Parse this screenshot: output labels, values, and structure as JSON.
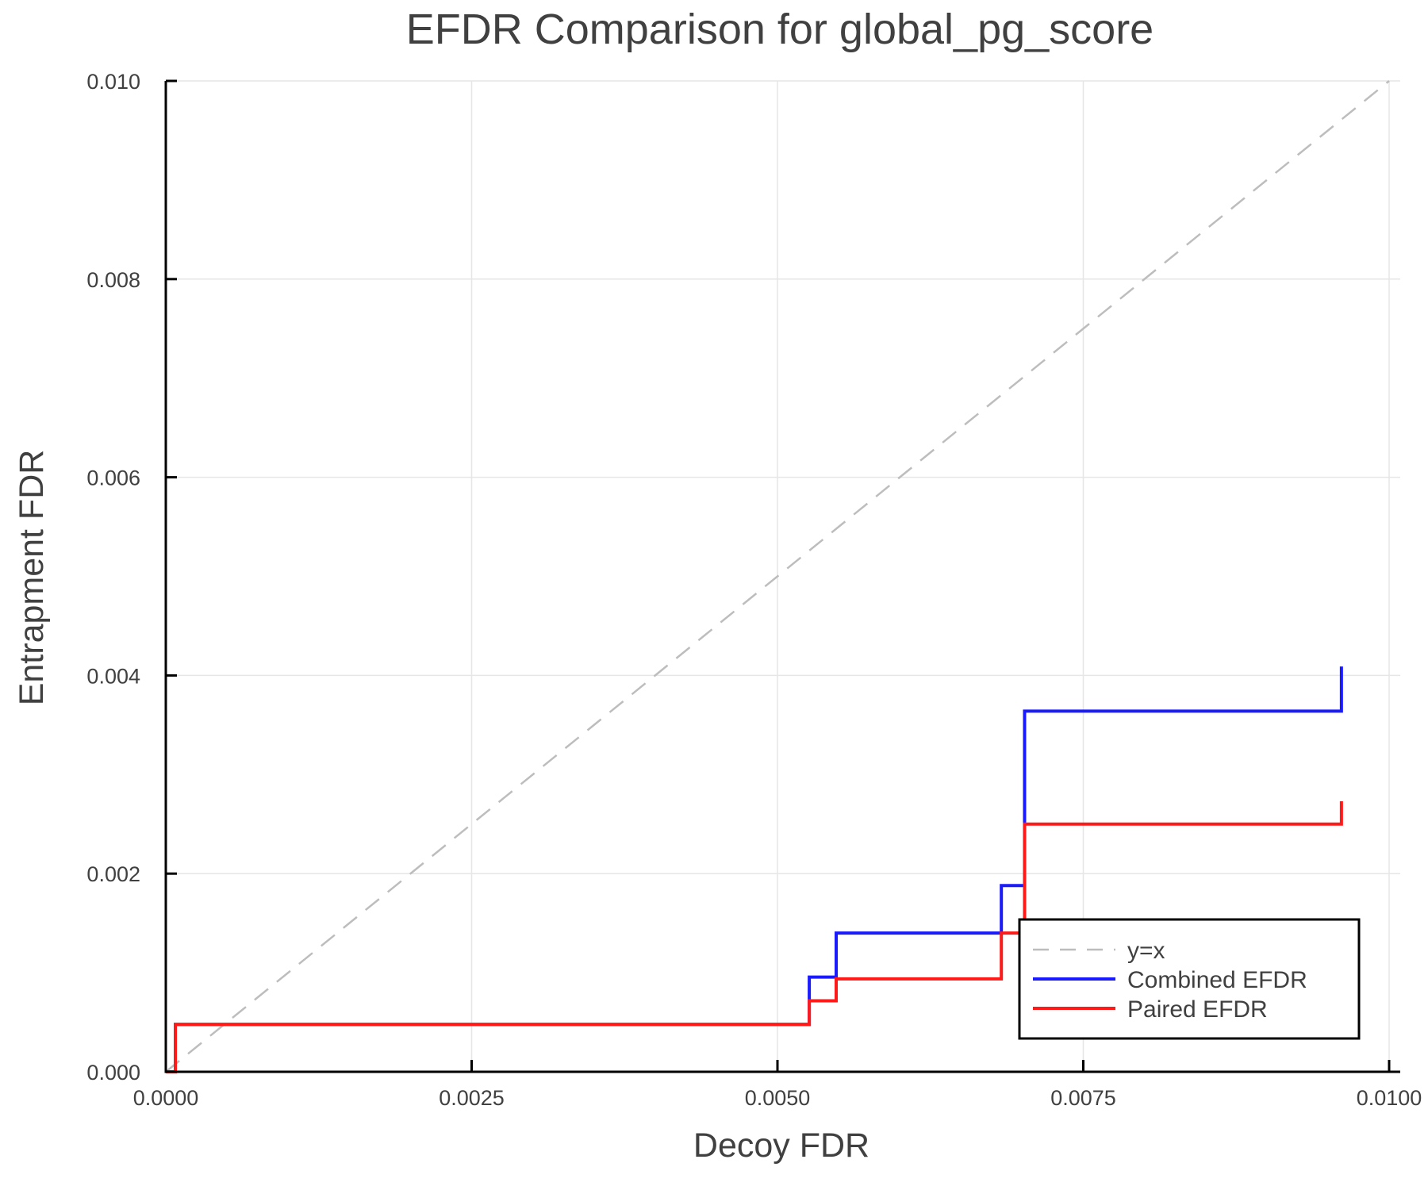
{
  "chart_data": {
    "type": "line",
    "title": "EFDR Comparison for global_pg_score",
    "xlabel": "Decoy FDR",
    "ylabel": "Entrapment FDR",
    "xlim": [
      0,
      0.01
    ],
    "ylim": [
      0,
      0.01
    ],
    "xticks": [
      "0.0000",
      "0.0025",
      "0.0050",
      "0.0075",
      "0.0100"
    ],
    "yticks": [
      "0.000",
      "0.002",
      "0.004",
      "0.006",
      "0.008",
      "0.010"
    ],
    "grid": true,
    "legend_position": "bottom-right",
    "series": [
      {
        "name": "y=x",
        "style": "dashed",
        "color": "#bdbdbd",
        "x": [
          0,
          0.01
        ],
        "y": [
          0,
          0.01
        ]
      },
      {
        "name": "Combined EFDR",
        "style": "step-post",
        "color": "#1a1aff",
        "x": [
          0,
          7.8e-05,
          0.00526,
          0.00548,
          0.00683,
          0.00702,
          0.00961
        ],
        "y": [
          0,
          0.000478,
          0.000956,
          0.0014,
          0.00188,
          0.00364,
          0.00409
        ]
      },
      {
        "name": "Paired EFDR",
        "style": "step-post",
        "color": "#ff1a1a",
        "x": [
          0,
          7.8e-05,
          0.00526,
          0.00548,
          0.00683,
          0.00702,
          0.00961
        ],
        "y": [
          0,
          0.000478,
          0.000717,
          0.000938,
          0.0014,
          0.0025,
          0.00273
        ]
      }
    ]
  }
}
